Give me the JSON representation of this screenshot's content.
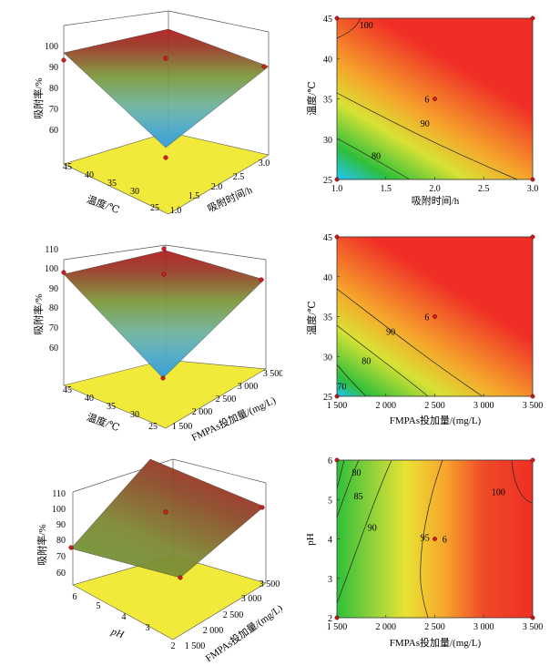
{
  "colors": {
    "surface_low": "#2f9ee8",
    "surface_mid": "#6f9a3a",
    "surface_high": "#b01f1f",
    "floor": "#f1ea3a",
    "contour_low": "#22c3ff",
    "contour_mid": "#2fbf3a",
    "contour_high": "#ef2f26",
    "design_point": "#cc1f1f"
  },
  "chart_data": [
    {
      "type": "surface3d",
      "zlabel": "吸附率/%",
      "xlabel": "吸附时间/h",
      "ylabel": "温度/℃",
      "zticks": [
        "60",
        "70",
        "80",
        "90",
        "100"
      ],
      "xticks": [
        "1.0",
        "1.5",
        "2.0",
        "2.5",
        "3.0"
      ],
      "yticks": [
        "25",
        "30",
        "35",
        "40",
        "45"
      ],
      "zlim": [
        55,
        104
      ],
      "x": [
        1.0,
        1.5,
        2.0,
        2.5,
        3.0
      ],
      "y": [
        25,
        30,
        35,
        40,
        45
      ],
      "z": [
        [
          62,
          74,
          83,
          89,
          93
        ],
        [
          74,
          82,
          88,
          92,
          95
        ],
        [
          83,
          88,
          92,
          95,
          97
        ],
        [
          89,
          92,
          95,
          97,
          98
        ],
        [
          93,
          95,
          97,
          98,
          99
        ]
      ]
    },
    {
      "type": "contour",
      "xlabel": "吸附时间/h",
      "ylabel": "温度/℃",
      "xticks": [
        "1.0",
        "1.5",
        "2.0",
        "2.5",
        "3.0"
      ],
      "yticks": [
        "25",
        "30",
        "35",
        "40",
        "45"
      ],
      "xlim": [
        1.0,
        3.0
      ],
      "ylim": [
        25,
        45
      ],
      "contour_labels": [
        {
          "text": "100",
          "x": 1.3,
          "y": 44.2
        },
        {
          "text": "90",
          "x": 1.9,
          "y": 32.0
        },
        {
          "text": "80",
          "x": 1.4,
          "y": 28.0
        },
        {
          "text": "6",
          "x": 1.92,
          "y": 35.0
        }
      ],
      "center_point": {
        "x": 2.0,
        "y": 35.0
      }
    },
    {
      "type": "surface3d",
      "zlabel": "吸附率/%",
      "xlabel": "FMPAs投加量/(mg/L)",
      "ylabel": "温度/℃",
      "zticks": [
        "60",
        "70",
        "80",
        "90",
        "100",
        "110"
      ],
      "xticks": [
        "1 500",
        "2 000",
        "2 500",
        "3 000",
        "3 500"
      ],
      "yticks": [
        "25",
        "30",
        "35",
        "40",
        "45"
      ],
      "zlim": [
        55,
        112
      ],
      "x": [
        1500,
        2000,
        2500,
        3000,
        3500
      ],
      "y": [
        25,
        30,
        35,
        40,
        45
      ],
      "z": [
        [
          66,
          76,
          85,
          91,
          96
        ],
        [
          76,
          84,
          90,
          95,
          98
        ],
        [
          85,
          90,
          95,
          98,
          100
        ],
        [
          91,
          95,
          98,
          100,
          101
        ],
        [
          96,
          98,
          100,
          101,
          102
        ]
      ]
    },
    {
      "type": "contour",
      "xlabel": "FMPAs投加量/(mg/L)",
      "ylabel": "温度/℃",
      "xticks": [
        "1 500",
        "2 000",
        "2 500",
        "3 000",
        "3 500"
      ],
      "yticks": [
        "25",
        "30",
        "35",
        "40",
        "45"
      ],
      "xlim": [
        1500,
        3500
      ],
      "ylim": [
        25,
        45
      ],
      "contour_labels": [
        {
          "text": "90",
          "x": 2050,
          "y": 33.2
        },
        {
          "text": "80",
          "x": 1800,
          "y": 29.5
        },
        {
          "text": "70",
          "x": 1550,
          "y": 26.3
        },
        {
          "text": "6",
          "x": 2420,
          "y": 35.0
        }
      ],
      "center_point": {
        "x": 2500,
        "y": 35.0
      }
    },
    {
      "type": "surface3d",
      "zlabel": "吸附率/%",
      "xlabel": "FMPAs投加量/(mg/L)",
      "ylabel": "pH",
      "zticks": [
        "60",
        "70",
        "80",
        "90",
        "100",
        "110"
      ],
      "xticks": [
        "1 500",
        "2 000",
        "2 500",
        "3 000",
        "3 500"
      ],
      "yticks": [
        "2",
        "3",
        "4",
        "5",
        "6"
      ],
      "zlim": [
        55,
        112
      ],
      "x": [
        1500,
        2000,
        2500,
        3000,
        3500
      ],
      "y": [
        2,
        3,
        4,
        5,
        6
      ],
      "z": [
        [
          74,
          82,
          88,
          92,
          95
        ],
        [
          75,
          83,
          89,
          93,
          96
        ],
        [
          76,
          84,
          90,
          94,
          97
        ],
        [
          77,
          85,
          91,
          95,
          98
        ],
        [
          78,
          86,
          92,
          96,
          99
        ]
      ]
    },
    {
      "type": "contour",
      "xlabel": "FMPAs投加量/(mg/L)",
      "ylabel": "pH",
      "xticks": [
        "1 500",
        "2 000",
        "2 500",
        "3 000",
        "3 500"
      ],
      "yticks": [
        "2",
        "3",
        "4",
        "5",
        "6"
      ],
      "xlim": [
        1500,
        3500
      ],
      "ylim": [
        2,
        6
      ],
      "contour_labels": [
        {
          "text": "80",
          "x": 1700,
          "y": 5.7
        },
        {
          "text": "85",
          "x": 1720,
          "y": 5.1
        },
        {
          "text": "90",
          "x": 1860,
          "y": 4.3
        },
        {
          "text": "95",
          "x": 2400,
          "y": 4.05
        },
        {
          "text": "6",
          "x": 2600,
          "y": 4.0
        },
        {
          "text": "100",
          "x": 3150,
          "y": 5.2
        }
      ],
      "center_point": {
        "x": 2500,
        "y": 4.0
      }
    }
  ]
}
